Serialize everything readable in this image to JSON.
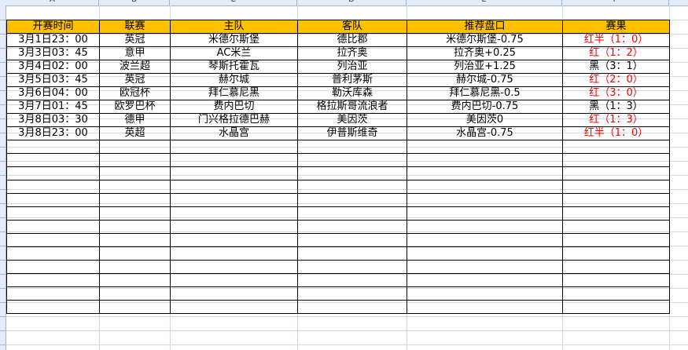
{
  "column_letters": [
    "A",
    "B",
    "C",
    "D",
    "E",
    "F"
  ],
  "table": {
    "headers": [
      "开赛时间",
      "联赛",
      "主队",
      "客队",
      "推荐盘口",
      "赛果"
    ],
    "rows": [
      [
        "3月1日23：00",
        "英冠",
        "米德尔斯堡",
        "德比郡",
        "米德尔斯堡-0.75",
        "红半（1：0）"
      ],
      [
        "3月3日03：45",
        "意甲",
        "AC米兰",
        "拉齐奥",
        "拉齐奥+0.25",
        "红（1：2）"
      ],
      [
        "3月4日02：00",
        "波兰超",
        "琴斯托霍瓦",
        "列治亚",
        "列治亚+1.25",
        "黑（3：1）"
      ],
      [
        "3月5日03：45",
        "英冠",
        "赫尔城",
        "普利茅斯",
        "赫尔城-0.75",
        "红（2：0）"
      ],
      [
        "3月6日04：00",
        "欧冠杯",
        "拜仁慕尼黑",
        "勒沃库森",
        "拜仁慕尼黑-0.5",
        "红（3：0）"
      ],
      [
        "3月7日01：45",
        "欧罗巴杯",
        "费内巴切",
        "格拉斯哥流浪者",
        "费内巴切-0.75",
        "黑（1：3）"
      ],
      [
        "3月8日03：30",
        "德甲",
        "门兴格拉德巴赫",
        "美因茨",
        "美因茨0",
        "红（1：3）"
      ],
      [
        "3月8日23：00",
        "英超",
        "水晶宫",
        "伊普斯维奇",
        "水晶宫-0.75",
        "红半（1：0）"
      ]
    ],
    "result_colors": [
      "red",
      "red",
      "black",
      "red",
      "red",
      "black",
      "red",
      "red"
    ]
  },
  "colors": {
    "header_fill": "#ffc000",
    "win": "#ff0000",
    "loss": "#000000"
  }
}
